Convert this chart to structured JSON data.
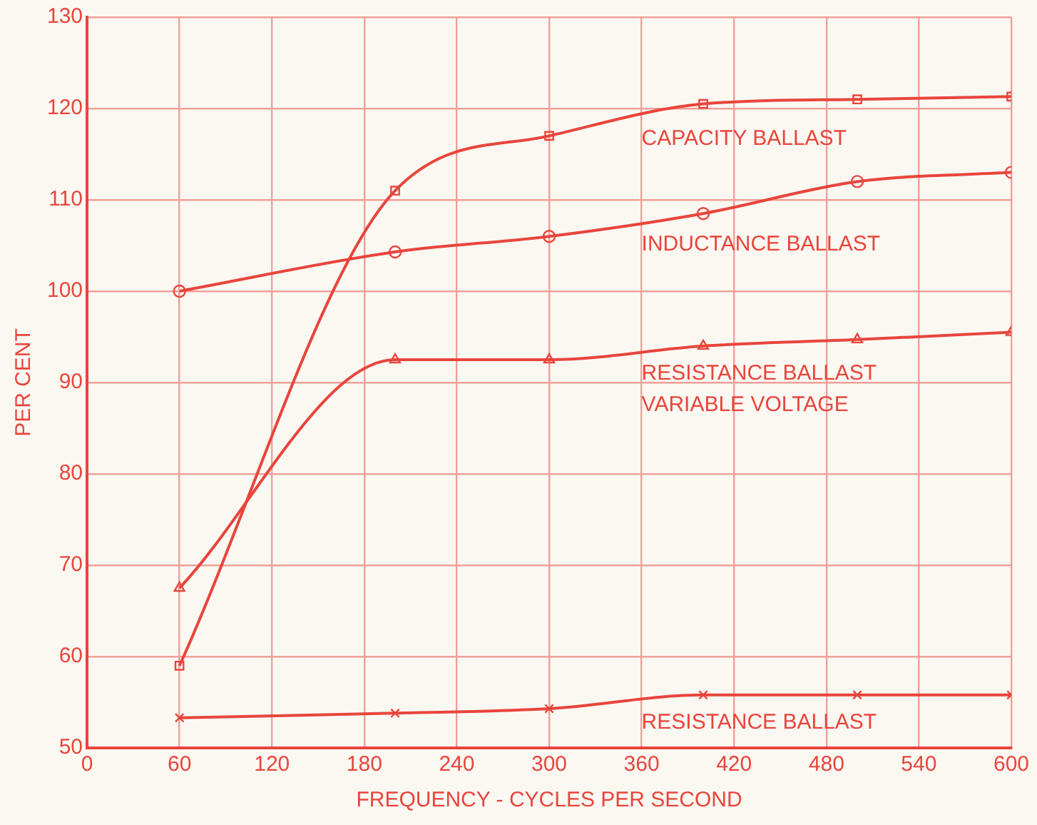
{
  "chart_data": {
    "type": "line",
    "xlabel": "FREQUENCY - CYCLES PER SECOND",
    "ylabel": "PER CENT",
    "xlim": [
      0,
      600
    ],
    "xticks": [
      0,
      60,
      120,
      180,
      240,
      300,
      360,
      420,
      480,
      540,
      600
    ],
    "ylim": [
      50,
      130
    ],
    "yticks": [
      50,
      60,
      70,
      80,
      90,
      100,
      110,
      120,
      130
    ],
    "grid": true,
    "line_style": "solid",
    "x": [
      60,
      200,
      300,
      400,
      500,
      600
    ],
    "series": [
      {
        "name": "CAPACITY BALLAST",
        "color": "#e8453c",
        "marker": "square",
        "values": [
          59,
          111,
          117,
          120.5,
          121,
          121.3
        ]
      },
      {
        "name": "INDUCTANCE BALLAST",
        "color": "#e8453c",
        "marker": "circle",
        "values": [
          100,
          104.3,
          106,
          108.5,
          112,
          113
        ]
      },
      {
        "name": "RESISTANCE BALLAST\nVARIABLE VOLTAGE",
        "color": "#e8453c",
        "marker": "triangle",
        "values": [
          67.5,
          92.5,
          92.5,
          94,
          94.7,
          95.5
        ]
      },
      {
        "name": "RESISTANCE BALLAST",
        "color": "#e8453c",
        "marker": "cross",
        "values": [
          53.3,
          53.8,
          54.3,
          55.8,
          55.8,
          55.8
        ]
      }
    ]
  }
}
